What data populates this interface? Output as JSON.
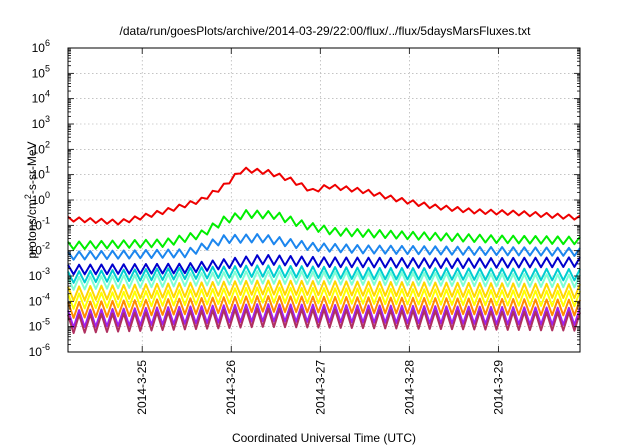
{
  "chart_data": {
    "type": "line",
    "title": "/data/run/goesPlots/archive/2014-03-29/22:00/flux/../flux/5daysMarsFluxes.txt",
    "xlabel": "Coordinated Universal Time (UTC)",
    "ylabel": {
      "prefix": "protons/cm",
      "sup": "2",
      "suffix": "-s-sr-MeV"
    },
    "y_scale": "log",
    "ylim_exp": [
      -6,
      6
    ],
    "y_ticks": [
      {
        "exp": -6,
        "label": "10",
        "sup": "-6"
      },
      {
        "exp": -5,
        "label": "10",
        "sup": "-5"
      },
      {
        "exp": -4,
        "label": "10",
        "sup": "-4"
      },
      {
        "exp": -3,
        "label": "10",
        "sup": "-3"
      },
      {
        "exp": -2,
        "label": "10",
        "sup": "-2"
      },
      {
        "exp": -1,
        "label": "10",
        "sup": "-1"
      },
      {
        "exp": 0,
        "label": "10",
        "sup": "0"
      },
      {
        "exp": 1,
        "label": "10",
        "sup": "1"
      },
      {
        "exp": 2,
        "label": "10",
        "sup": "2"
      },
      {
        "exp": 3,
        "label": "10",
        "sup": "3"
      },
      {
        "exp": 4,
        "label": "10",
        "sup": "4"
      },
      {
        "exp": 5,
        "label": "10",
        "sup": "5"
      },
      {
        "exp": 6,
        "label": "10",
        "sup": "6"
      }
    ],
    "xlim": [
      "2014-03-24T04:00",
      "2014-03-29T22:00"
    ],
    "x_ticks": [
      {
        "date": "2014-03-25T00:00",
        "label": "2014-3-25"
      },
      {
        "date": "2014-03-26T00:00",
        "label": "2014-3-26"
      },
      {
        "date": "2014-03-27T00:00",
        "label": "2014-3-27"
      },
      {
        "date": "2014-03-28T00:00",
        "label": "2014-3-28"
      },
      {
        "date": "2014-03-29T00:00",
        "label": "2014-3-29"
      }
    ],
    "grid": true,
    "legend": "none",
    "series": [
      {
        "color": "#ee0000",
        "profile": [
          [
            "2014-03-24T04:00",
            -0.75
          ],
          [
            "2014-03-24T18:00",
            -0.88
          ],
          [
            "2014-03-25T06:00",
            -0.45
          ],
          [
            "2014-03-25T16:00",
            0.0
          ],
          [
            "2014-03-25T22:00",
            0.55
          ],
          [
            "2014-03-26T03:00",
            1.2
          ],
          [
            "2014-03-26T10:00",
            1.1
          ],
          [
            "2014-03-26T16:00",
            0.8
          ],
          [
            "2014-03-26T22:00",
            0.35
          ],
          [
            "2014-03-27T02:00",
            0.55
          ],
          [
            "2014-03-27T12:00",
            0.35
          ],
          [
            "2014-03-27T20:00",
            0.05
          ],
          [
            "2014-03-28T06:00",
            -0.25
          ],
          [
            "2014-03-28T18:00",
            -0.45
          ],
          [
            "2014-03-29T06:00",
            -0.52
          ],
          [
            "2014-03-29T22:00",
            -0.7
          ]
        ],
        "amp": 0.18
      },
      {
        "color": "#00ee00",
        "profile": [
          [
            "2014-03-24T04:00",
            -1.8
          ],
          [
            "2014-03-25T06:00",
            -1.7
          ],
          [
            "2014-03-25T16:00",
            -1.35
          ],
          [
            "2014-03-25T22:00",
            -0.8
          ],
          [
            "2014-03-26T04:00",
            -0.55
          ],
          [
            "2014-03-26T12:00",
            -0.6
          ],
          [
            "2014-03-26T20:00",
            -1.0
          ],
          [
            "2014-03-27T04:00",
            -1.25
          ],
          [
            "2014-03-28T00:00",
            -1.4
          ],
          [
            "2014-03-29T00:00",
            -1.55
          ],
          [
            "2014-03-29T22:00",
            -1.6
          ]
        ],
        "amp": 0.3
      },
      {
        "color": "#1c86ee",
        "profile": [
          [
            "2014-03-24T04:00",
            -2.2
          ],
          [
            "2014-03-25T12:00",
            -2.1
          ],
          [
            "2014-03-25T22:00",
            -1.55
          ],
          [
            "2014-03-26T08:00",
            -1.5
          ],
          [
            "2014-03-26T22:00",
            -1.85
          ],
          [
            "2014-03-27T12:00",
            -1.95
          ],
          [
            "2014-03-28T12:00",
            -2.0
          ],
          [
            "2014-03-29T22:00",
            -2.05
          ]
        ],
        "amp": 0.32
      },
      {
        "color": "#0000cd",
        "profile": [
          [
            "2014-03-24T04:00",
            -2.75
          ],
          [
            "2014-03-25T12:00",
            -2.7
          ],
          [
            "2014-03-26T08:00",
            -2.35
          ],
          [
            "2014-03-27T00:00",
            -2.45
          ],
          [
            "2014-03-28T12:00",
            -2.5
          ],
          [
            "2014-03-29T22:00",
            -2.45
          ]
        ],
        "amp": 0.38
      },
      {
        "color": "#00ced1",
        "profile": [
          [
            "2014-03-24T04:00",
            -3.05
          ],
          [
            "2014-03-26T08:00",
            -2.8
          ],
          [
            "2014-03-27T12:00",
            -2.9
          ],
          [
            "2014-03-29T22:00",
            -2.95
          ]
        ],
        "amp": 0.45
      },
      {
        "color": "#7fffd4",
        "profile": [
          [
            "2014-03-24T04:00",
            -3.3
          ],
          [
            "2014-03-26T08:00",
            -3.05
          ],
          [
            "2014-03-29T22:00",
            -3.2
          ]
        ],
        "amp": 0.5
      },
      {
        "color": "#ffd700",
        "profile": [
          [
            "2014-03-24T04:00",
            -3.7
          ],
          [
            "2014-03-26T08:00",
            -3.45
          ],
          [
            "2014-03-29T22:00",
            -3.6
          ]
        ],
        "amp": 0.55
      },
      {
        "color": "#ffff00",
        "profile": [
          [
            "2014-03-24T04:00",
            -4.0
          ],
          [
            "2014-03-26T08:00",
            -3.75
          ],
          [
            "2014-03-29T22:00",
            -3.9
          ]
        ],
        "amp": 0.6
      },
      {
        "color": "#ff8c00",
        "profile": [
          [
            "2014-03-24T04:00",
            -4.35
          ],
          [
            "2014-03-26T08:00",
            -4.1
          ],
          [
            "2014-03-29T22:00",
            -4.25
          ]
        ],
        "amp": 0.62
      },
      {
        "color": "#a020f0",
        "profile": [
          [
            "2014-03-24T04:00",
            -4.7
          ],
          [
            "2014-03-26T08:00",
            -4.45
          ],
          [
            "2014-03-29T22:00",
            -4.6
          ]
        ],
        "amp": 0.68
      },
      {
        "color": "#b03060",
        "profile": [
          [
            "2014-03-24T04:00",
            -4.9
          ],
          [
            "2014-03-26T08:00",
            -4.65
          ],
          [
            "2014-03-29T22:00",
            -4.8
          ]
        ],
        "amp": 0.72
      }
    ]
  }
}
